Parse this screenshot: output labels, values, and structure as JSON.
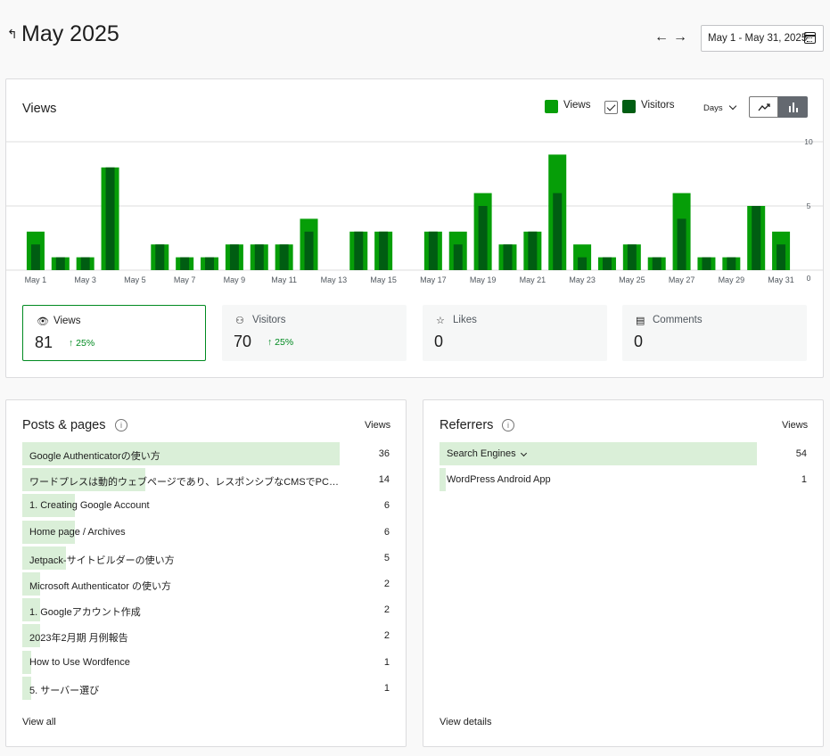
{
  "header": {
    "title": "May 2025",
    "date_range": "May 1 - May 31, 2025"
  },
  "views_card": {
    "title": "Views",
    "legend": [
      {
        "label": "Views",
        "color": "#069e08"
      },
      {
        "label": "Visitors",
        "color": "#005d12"
      }
    ],
    "period_select": "Days",
    "chart_type_options": [
      "line-chart-icon",
      "bar-chart-icon"
    ]
  },
  "chart_data": {
    "type": "bar",
    "categories": [
      "May 1",
      "May 2",
      "May 3",
      "May 4",
      "May 5",
      "May 6",
      "May 7",
      "May 8",
      "May 9",
      "May 10",
      "May 11",
      "May 12",
      "May 13",
      "May 14",
      "May 15",
      "May 16",
      "May 17",
      "May 18",
      "May 19",
      "May 20",
      "May 21",
      "May 22",
      "May 23",
      "May 24",
      "May 25",
      "May 26",
      "May 27",
      "May 28",
      "May 29",
      "May 30",
      "May 31"
    ],
    "tick_labels": [
      "May 1",
      "May 3",
      "May 5",
      "May 7",
      "May 9",
      "May 11",
      "May 13",
      "May 15",
      "May 17",
      "May 19",
      "May 21",
      "May 23",
      "May 25",
      "May 27",
      "May 29",
      "May 31"
    ],
    "series": [
      {
        "name": "Views",
        "color": "#069e08",
        "values": [
          3,
          1,
          1,
          8,
          0,
          2,
          1,
          1,
          2,
          2,
          2,
          4,
          0,
          3,
          3,
          0,
          3,
          3,
          6,
          2,
          3,
          9,
          2,
          1,
          2,
          1,
          6,
          1,
          1,
          5,
          3
        ]
      },
      {
        "name": "Visitors",
        "color": "#005d12",
        "values": [
          2,
          1,
          1,
          8,
          0,
          2,
          1,
          1,
          2,
          2,
          2,
          3,
          0,
          3,
          3,
          0,
          3,
          2,
          5,
          2,
          3,
          6,
          1,
          1,
          2,
          1,
          4,
          1,
          1,
          5,
          2
        ]
      }
    ],
    "ylim": [
      0,
      10
    ],
    "y_ticks": [
      "10",
      "5",
      "0"
    ],
    "grid": true
  },
  "stats": [
    {
      "icon": "eye-icon",
      "label": "Views",
      "value": "81",
      "change": "↑ 25%"
    },
    {
      "icon": "people-icon",
      "label": "Visitors",
      "value": "70",
      "change": "↑ 25%"
    },
    {
      "icon": "star-icon",
      "label": "Likes",
      "value": "0",
      "change": ""
    },
    {
      "icon": "comment-icon",
      "label": "Comments",
      "value": "0",
      "change": ""
    }
  ],
  "posts": {
    "title": "Posts & pages",
    "column": "Views",
    "max": 36,
    "rows": [
      {
        "label": "Google Authenticatorの使い方",
        "value": 36
      },
      {
        "label": "ワードプレスは動的ウェブページであり、レスポンシブなCMSでPC・ス…",
        "value": 14
      },
      {
        "label": "1. Creating Google Account",
        "value": 6
      },
      {
        "label": "Home page / Archives",
        "value": 6
      },
      {
        "label": "Jetpack-サイトビルダーの使い方",
        "value": 5
      },
      {
        "label": "Microsoft Authenticator の使い方",
        "value": 2
      },
      {
        "label": "1. Googleアカウント作成",
        "value": 2
      },
      {
        "label": "2023年2月期 月例報告",
        "value": 2
      },
      {
        "label": "How to Use Wordfence",
        "value": 1
      },
      {
        "label": "5. サーバー選び",
        "value": 1
      }
    ],
    "link": "View all"
  },
  "referrers": {
    "title": "Referrers",
    "column": "Views",
    "max": 54,
    "rows": [
      {
        "label": "Search Engines",
        "value": 54
      },
      {
        "label": "WordPress Android App",
        "value": 1
      }
    ],
    "link": "View details"
  }
}
